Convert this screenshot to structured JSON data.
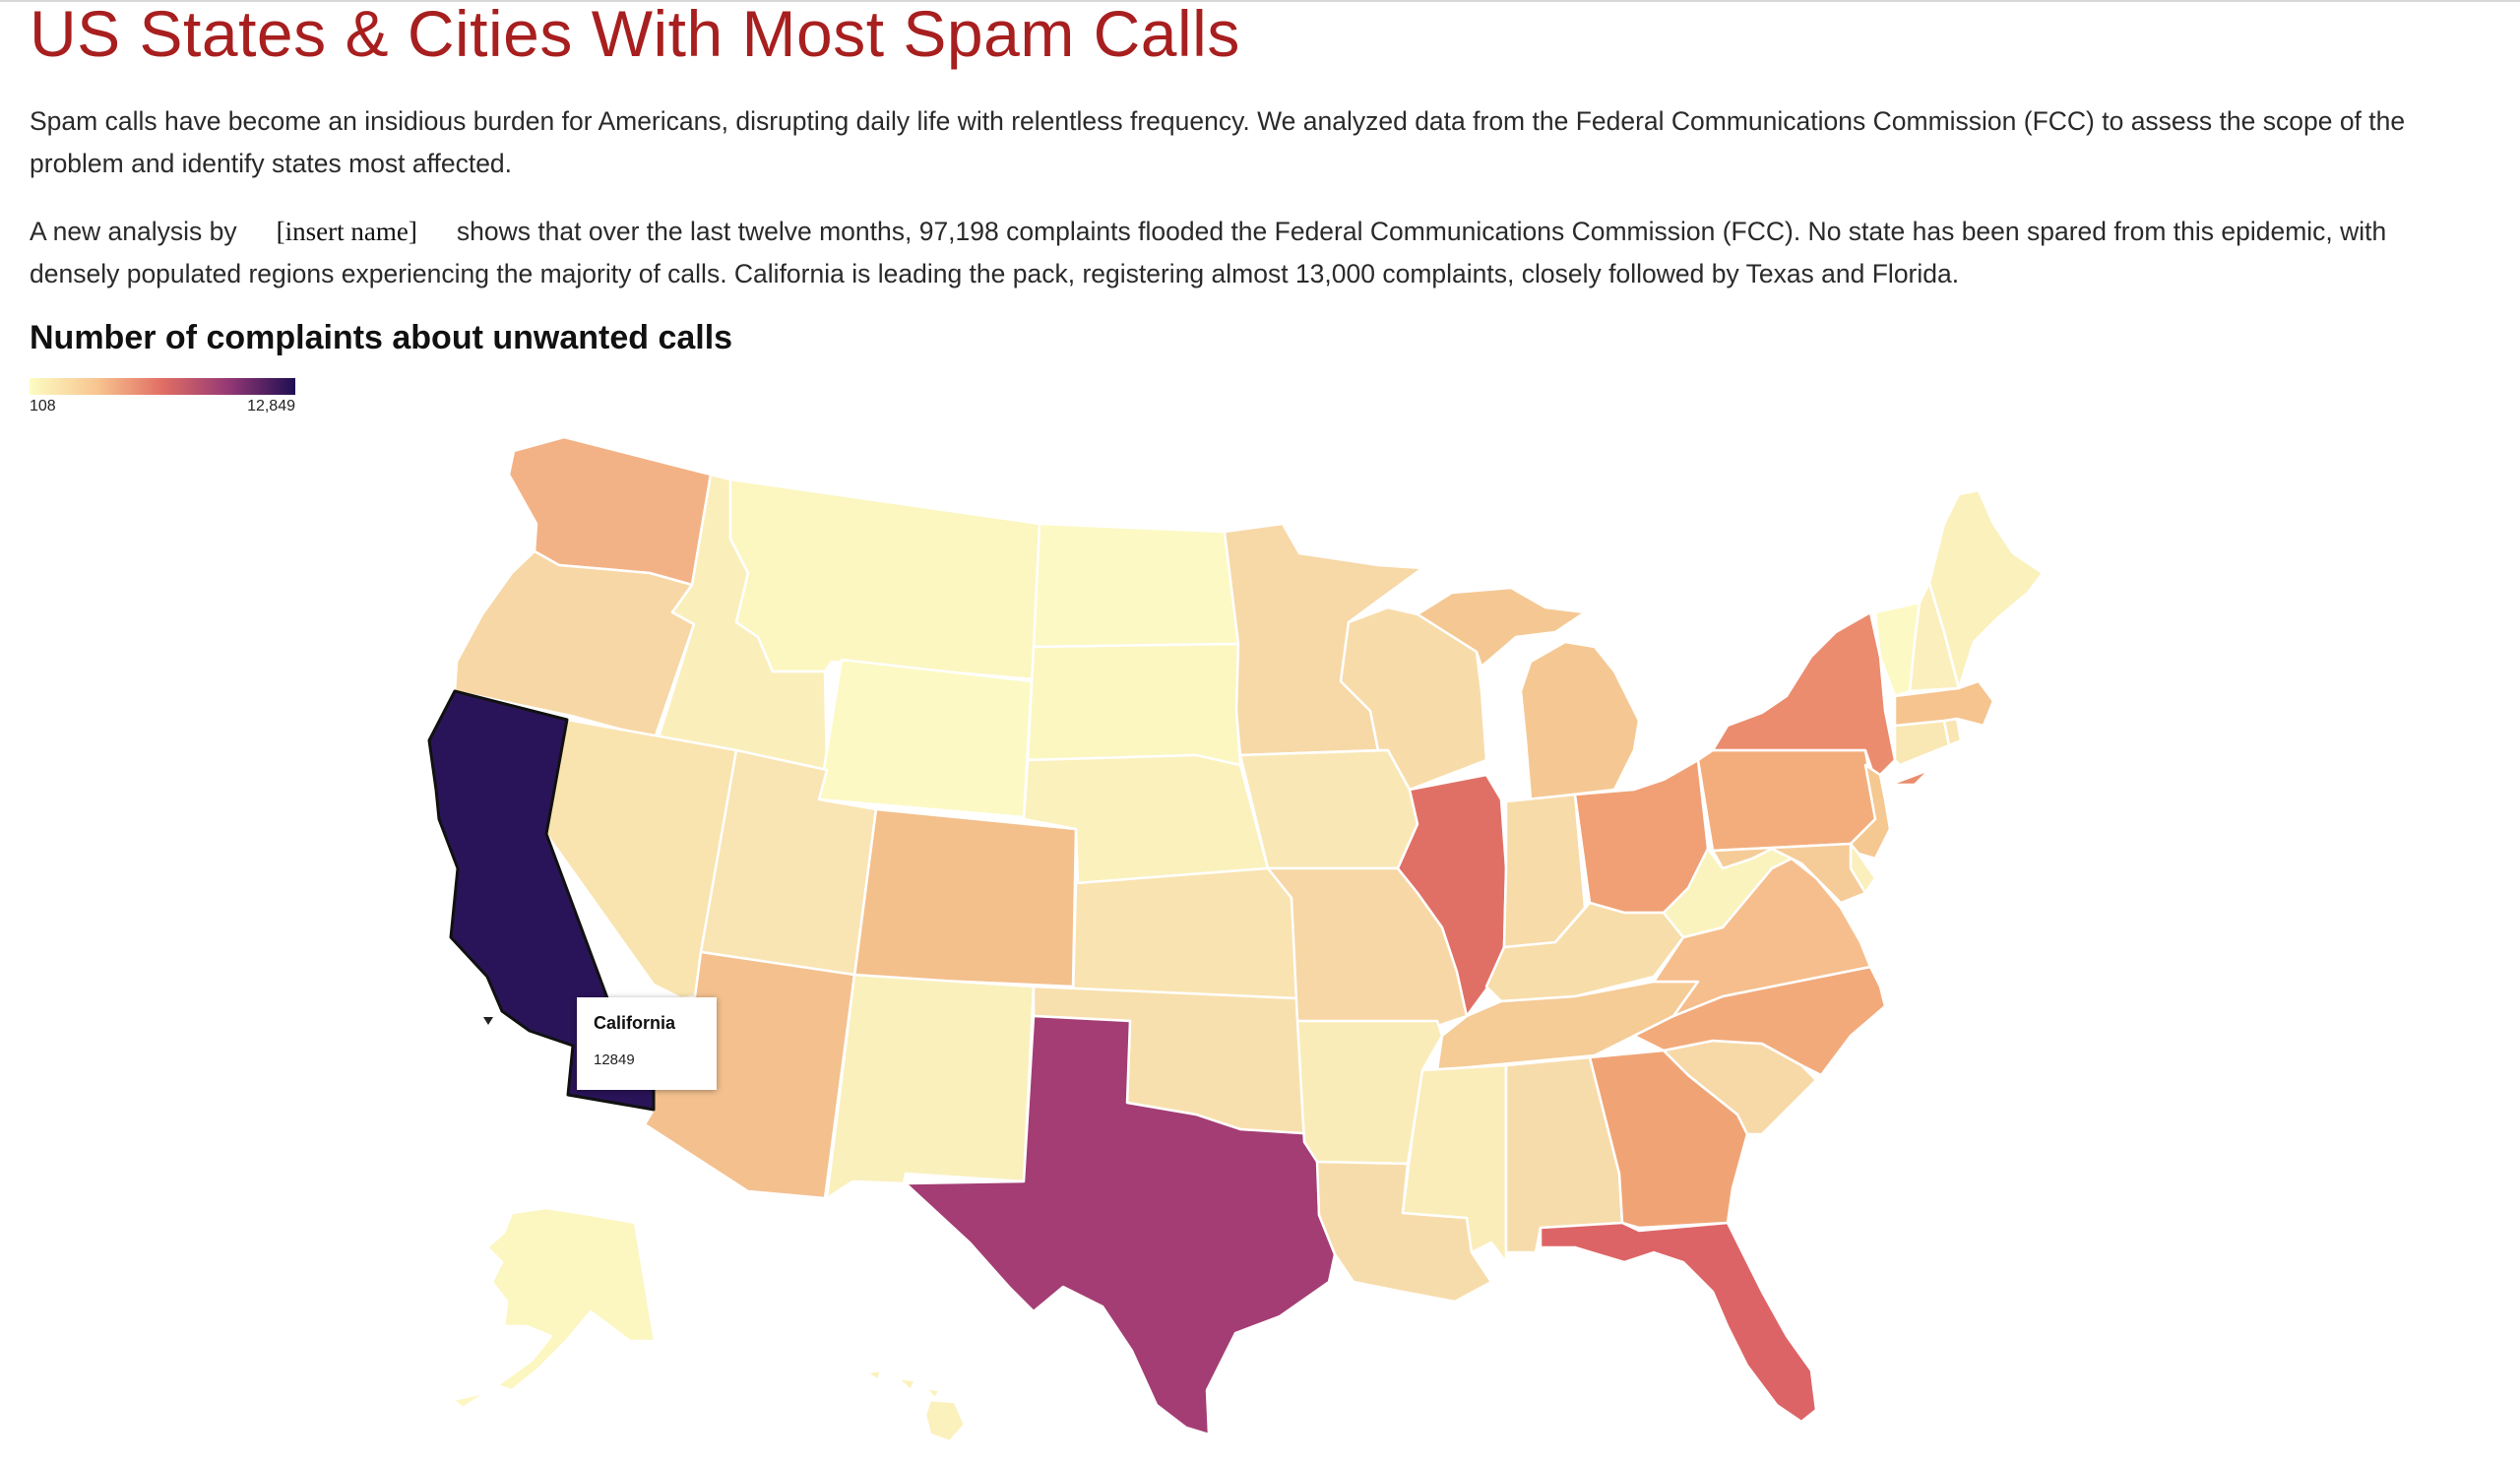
{
  "article": {
    "title": "US States & Cities With Most Spam Calls",
    "intro": "Spam calls have become an insidious burden for Americans, disrupting daily life with relentless frequency. We analyzed data from the Federal Communications Commission (FCC) to assess the scope of the problem and identify states most affected.",
    "analysis_prefix": "A new analysis by",
    "analysis_placeholder": "[insert name]",
    "analysis_body": "shows that over the last twelve months, 97,198 complaints flooded the Federal Communications Commission (FCC). No state has been spared from this epidemic, with densely populated regions experiencing the majority of calls. California is leading the pack, registering almost 13,000 complaints, closely followed by Texas and Florida."
  },
  "map": {
    "title": "Number of complaints about unwanted calls",
    "legend": {
      "min_label": "108",
      "max_label": "12,849",
      "min": 108,
      "max": 12849,
      "color_stops": [
        "#fcfcc2",
        "#f8c690",
        "#e16e64",
        "#943875",
        "#1e0f52"
      ]
    },
    "selected_state": "California",
    "tooltip": {
      "name": "California",
      "value": "12849"
    },
    "fills": {
      "California": "#2a1459",
      "Texas": "#a33d73",
      "Florida": "#dd6466",
      "Illinois": "#e07066",
      "New York": "#eb8c6e",
      "Ohio": "#f0a074",
      "Georgia": "#f0a476",
      "Pennsylvania": "#f3ad7d",
      "Washington": "#f3b285",
      "Colorado": "#f3bf8b",
      "Arizona": "#f3c08e",
      "North Carolina": "#f2aa7b",
      "Virginia": "#f5be8c",
      "Michigan": "#f5c893",
      "Massachusetts": "#f5c48f",
      "New Jersey": "#f5c892",
      "Maryland": "#f5cc98",
      "Tennessee": "#f5cb96",
      "Missouri": "#f7d7a5",
      "Indiana": "#f7dba8",
      "Oregon": "#f7d7a5",
      "Minnesota": "#f7d8a7",
      "Wisconsin": "#f7dcaa",
      "Kentucky": "#f7dda9",
      "Louisiana": "#f7dcab",
      "Alabama": "#f7dcab",
      "Oklahoma": "#f8e0ae",
      "South Carolina": "#f7d9a8",
      "Kansas": "#f9e3b0",
      "Nevada": "#f9e4b0",
      "Utah": "#f9e4b3",
      "Iowa": "#f9e8b6",
      "Connecticut": "#f9e7b4",
      "Arkansas": "#faecb8",
      "Mississippi": "#faedb9",
      "Idaho": "#faefbb",
      "New Mexico": "#faf0bc",
      "Nebraska": "#fbf1bd",
      "West Virginia": "#fbf3be",
      "Delaware": "#fbf0bd",
      "New Hampshire": "#fbf0bd",
      "Maine": "#fbf1bd",
      "Montana": "#fcf6c1",
      "Wyoming": "#fcf9c4",
      "North Dakota": "#fcf9c4",
      "South Dakota": "#fcf6c1",
      "Vermont": "#fcf9c4",
      "Rhode Island": "#f9e6b2",
      "Alaska": "#fcf6c1",
      "Hawaii": "#fbf1bd"
    }
  }
}
